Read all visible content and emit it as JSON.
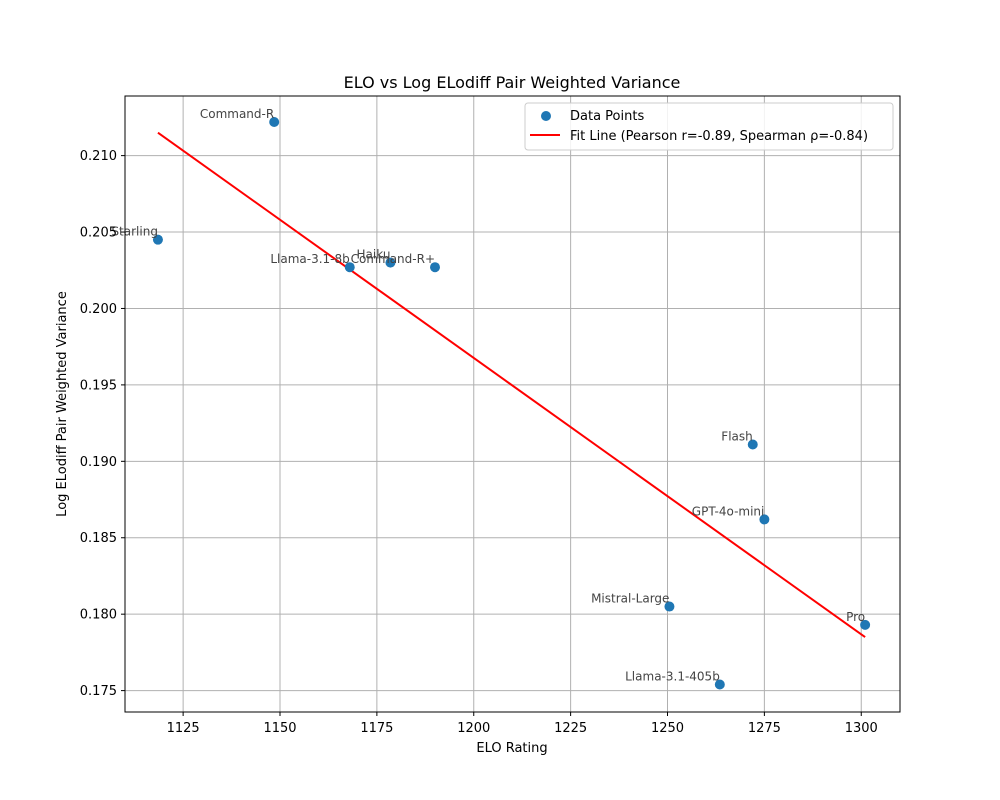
{
  "chart_data": {
    "type": "scatter",
    "title": "ELO vs Log ELodiff Pair Weighted Variance",
    "xlabel": "ELO Rating",
    "ylabel": "Log ELodiff Pair Weighted Variance",
    "xlim": [
      1110,
      1310
    ],
    "ylim": [
      0.1736,
      0.2139
    ],
    "xticks": [
      1125,
      1150,
      1175,
      1200,
      1225,
      1250,
      1275,
      1300
    ],
    "yticks": [
      0.175,
      0.18,
      0.185,
      0.19,
      0.195,
      0.2,
      0.205,
      0.21
    ],
    "xtick_labels": [
      "1125",
      "1150",
      "1175",
      "1200",
      "1225",
      "1250",
      "1275",
      "1300"
    ],
    "ytick_labels": [
      "0.175",
      "0.180",
      "0.185",
      "0.190",
      "0.195",
      "0.200",
      "0.205",
      "0.210"
    ],
    "grid": true,
    "legend_position": "top-right",
    "points": [
      {
        "label": "Command-R",
        "x": 1148.5,
        "y": 0.2122
      },
      {
        "label": "Starling",
        "x": 1118.5,
        "y": 0.2045
      },
      {
        "label": "Llama-3.1-8b",
        "x": 1168,
        "y": 0.2027
      },
      {
        "label": "Haiku",
        "x": 1178.5,
        "y": 0.203
      },
      {
        "label": "Command-R+",
        "x": 1190,
        "y": 0.2027
      },
      {
        "label": "Flash",
        "x": 1272,
        "y": 0.1911
      },
      {
        "label": "GPT-4o-mini",
        "x": 1275,
        "y": 0.1862
      },
      {
        "label": "Mistral-Large",
        "x": 1250.5,
        "y": 0.1805
      },
      {
        "label": "Pro",
        "x": 1301,
        "y": 0.1793
      },
      {
        "label": "Llama-3.1-405b",
        "x": 1263.5,
        "y": 0.1754
      }
    ],
    "fit_line": {
      "x": [
        1118.5,
        1301
      ],
      "y": [
        0.2115,
        0.1785
      ]
    },
    "series": [
      {
        "name": "Data Points",
        "color": "#1f77b4",
        "kind": "scatter"
      },
      {
        "name": "Fit Line (Pearson r=-0.89, Spearman ρ=-0.84)",
        "color": "#ff0000",
        "kind": "line"
      }
    ]
  }
}
